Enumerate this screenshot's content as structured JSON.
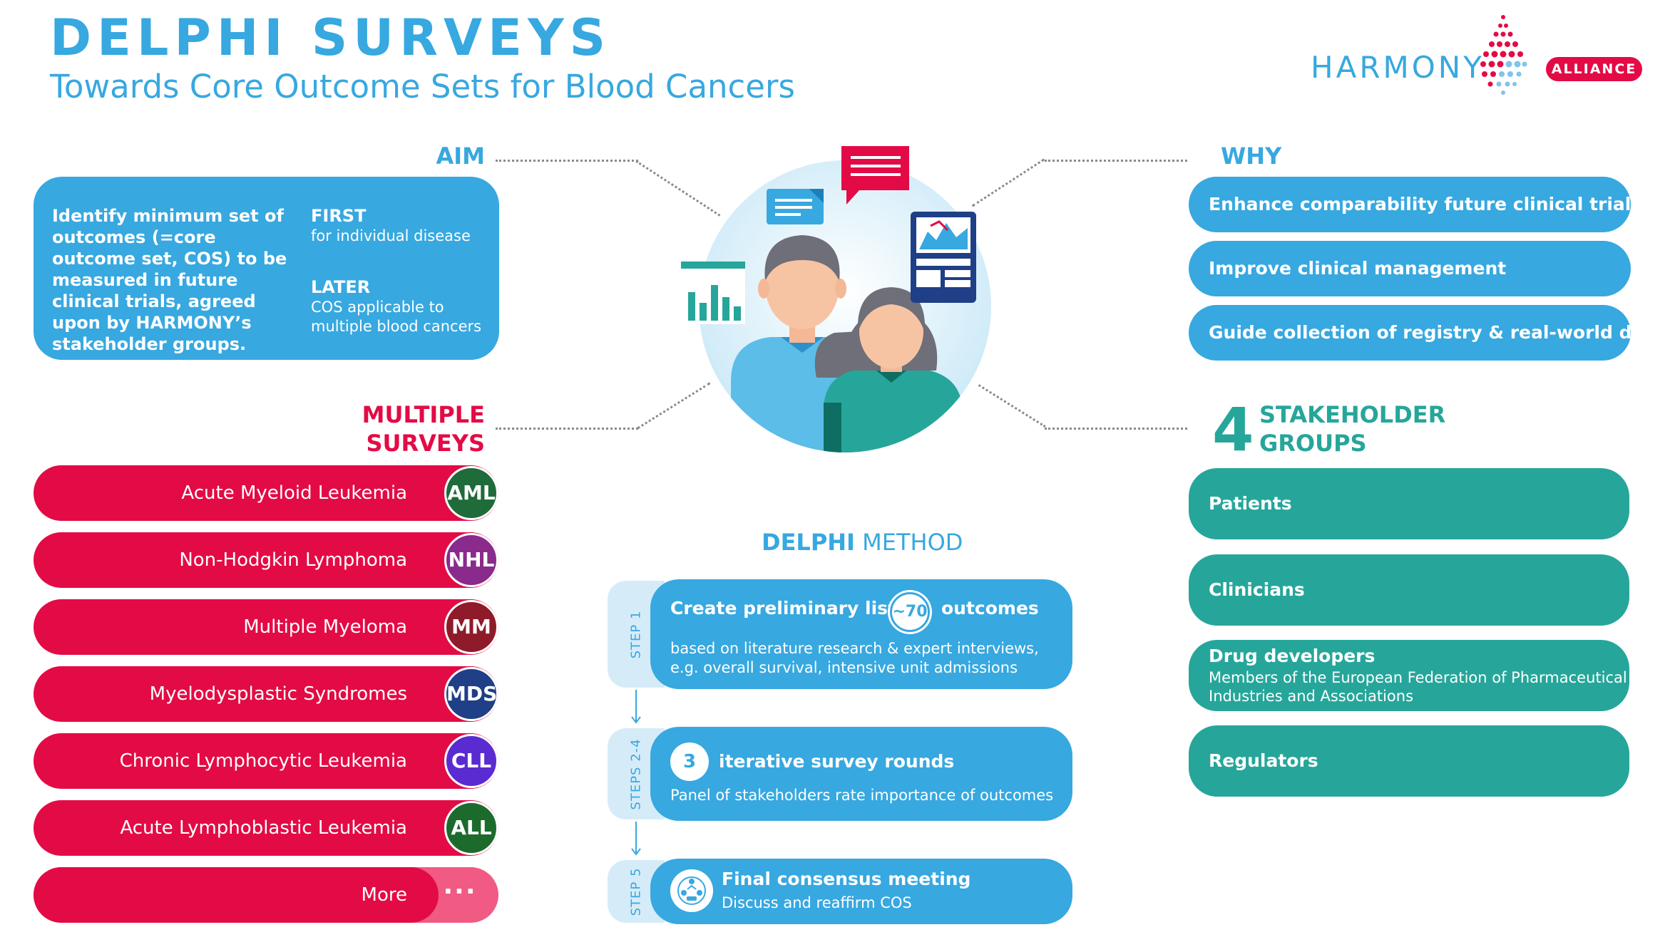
{
  "header": {
    "title": "DELPHI SURVEYS",
    "subtitle": "Towards Core Outcome Sets for Blood Cancers"
  },
  "logo": {
    "wordmark": "HARMONY",
    "badge": "ALLIANCE"
  },
  "aim": {
    "heading": "AIM",
    "main_text": "Identify minimum set of outcomes (=core outcome set, COS) to be measured in future clinical trials, agreed upon by HARMONY’s stakeholder groups.",
    "first_label": "FIRST",
    "first_text": "for individual disease",
    "later_label": "LATER",
    "later_text": "COS applicable to multiple blood cancers"
  },
  "why": {
    "heading": "WHY",
    "items": [
      "Enhance comparability future clinical trials",
      "Improve clinical management",
      "Guide collection of registry & real-world data"
    ]
  },
  "surveys": {
    "heading_line1": "MULTIPLE",
    "heading_line2": "SURVEYS",
    "items": [
      {
        "label": "Acute Myeloid Leukemia",
        "badge": "AML",
        "badge_color": "#1f6b3a"
      },
      {
        "label": "Non-Hodgkin Lymphoma",
        "badge": "NHL",
        "badge_color": "#8a2a8c"
      },
      {
        "label": "Multiple Myeloma",
        "badge": "MM",
        "badge_color": "#8e1a2a"
      },
      {
        "label": "Myelodysplastic Syndromes",
        "badge": "MDS",
        "badge_color": "#1f3f86"
      },
      {
        "label": "Chronic Lymphocytic Leukemia",
        "badge": "CLL",
        "badge_color": "#5a2bd1"
      },
      {
        "label": "Acute Lymphoblastic Leukemia",
        "badge": "ALL",
        "badge_color": "#1c6b2d"
      }
    ],
    "more_label": "More",
    "more_dots": "···"
  },
  "stakeholders": {
    "number": "4",
    "heading_line1": "STAKEHOLDER",
    "heading_line2": "GROUPS",
    "patients": "Patients",
    "clinicians": "Clinicians",
    "drug_title": "Drug developers",
    "drug_desc": "Members of the European Federation of Pharmaceutical Industries and Associations",
    "regulators": "Regulators"
  },
  "method": {
    "heading_bold": "DELPHI",
    "heading_rest": " METHOD",
    "step1": {
      "tab": "STEP 1",
      "title_a": "Create preliminary list of",
      "number": "~70",
      "title_b": "outcomes",
      "desc": "based on literature research & expert interviews, e.g. overall survival, intensive unit admissions"
    },
    "step2": {
      "tab": "STEPS 2-4",
      "number": "3",
      "title": "iterative survey rounds",
      "desc": "Panel of stakeholders rate importance of outcomes"
    },
    "step5": {
      "tab": "STEP 5",
      "title": "Final consensus meeting",
      "desc": "Discuss and reaffirm COS"
    }
  },
  "colors": {
    "blue": "#37a8e0",
    "red": "#e30b45",
    "teal": "#26a69a"
  }
}
